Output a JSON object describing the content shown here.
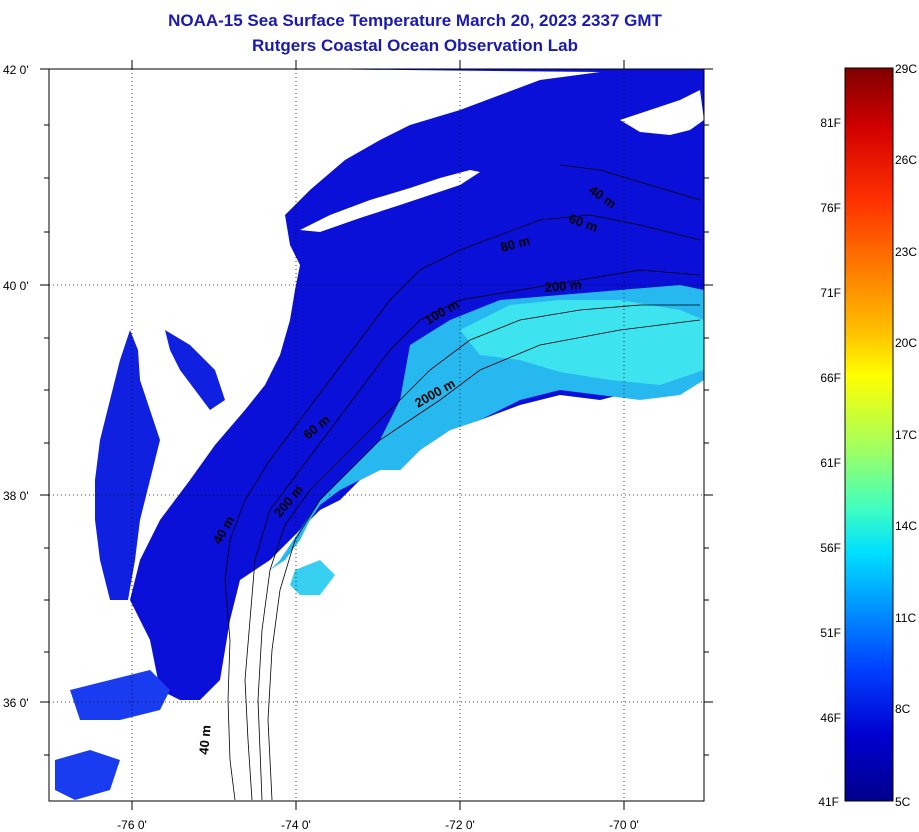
{
  "title_line1": "NOAA-15 Sea Surface Temperature March 20, 2023 2337 GMT",
  "title_line2": "Rutgers Coastal Ocean Observation Lab",
  "map": {
    "lon_range": [
      -77,
      -69
    ],
    "lat_range": [
      35,
      42
    ],
    "lat_ticks": [
      {
        "value": 42,
        "label": "42 0'"
      },
      {
        "value": 40,
        "label": "40 0'"
      },
      {
        "value": 38,
        "label": "38 0'"
      },
      {
        "value": 36,
        "label": "36 0'"
      }
    ],
    "lon_ticks": [
      {
        "value": -76,
        "label": "-76 0'"
      },
      {
        "value": -74,
        "label": "-74 0'"
      },
      {
        "value": -72,
        "label": "-72 0'"
      },
      {
        "value": -70,
        "label": "-70 0'"
      }
    ],
    "grid": "dotted",
    "land_color": "#ffffff",
    "water_cold_color": "#0a10d8",
    "water_warm_color": "#30e0f0",
    "depth_contour_labels": [
      "40 m",
      "60 m",
      "80 m",
      "200 m",
      "100 m",
      "2000 m",
      "60 m",
      "200 m",
      "40 m",
      "40 m"
    ]
  },
  "colorbar": {
    "celsius_labels": [
      "29C",
      "26C",
      "23C",
      "20C",
      "17C",
      "14C",
      "11C",
      "8C",
      "5C"
    ],
    "fahrenheit_labels": [
      "81F",
      "76F",
      "71F",
      "66F",
      "61F",
      "56F",
      "51F",
      "46F",
      "41F"
    ],
    "min_c": 5,
    "max_c": 29,
    "colors": [
      "#800000",
      "#d00000",
      "#ff3000",
      "#ff8000",
      "#ffc000",
      "#ffff00",
      "#a0ff60",
      "#40ffc0",
      "#00e0ff",
      "#0090ff",
      "#0040ff",
      "#0000d0",
      "#00008c"
    ]
  }
}
